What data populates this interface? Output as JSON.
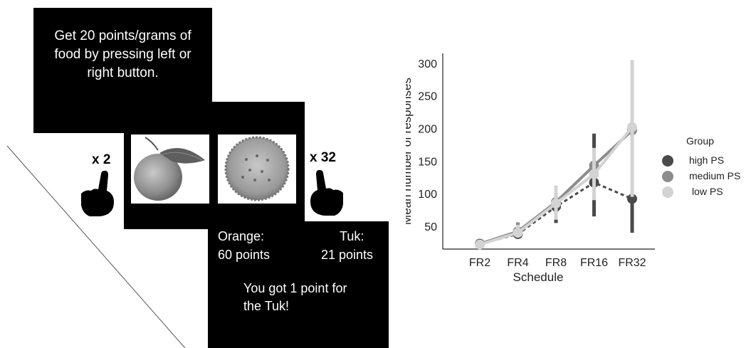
{
  "left_panel": {
    "instruction_text_lines": [
      "Get 20 points/grams of",
      "food by pressing left or",
      "right button."
    ],
    "left_multiplier": "x 2",
    "right_multiplier": "x 32",
    "feedback": {
      "left_name": "Orange:",
      "left_points": "60 points",
      "right_name": "Tuk:",
      "right_points": "21 points",
      "message_lines": [
        "You got 1 point for",
        "the Tuk!"
      ]
    },
    "icons": [
      "hand-pointing-icon",
      "orange-image",
      "tuk-cracker-image"
    ]
  },
  "chart_data": {
    "type": "line",
    "xlabel": "Schedule",
    "ylabel": "Mean number of responses",
    "categories": [
      "FR2",
      "FR4",
      "FR8",
      "FR16",
      "FR32"
    ],
    "yticks": [
      50,
      100,
      150,
      200,
      250,
      300
    ],
    "ylim": [
      15,
      315
    ],
    "legend_title": "Group",
    "legend_position": "right",
    "series": [
      {
        "name": "high PS",
        "color": "#4a4a4a",
        "dash": true,
        "values": [
          23,
          38,
          80,
          117,
          92
        ],
        "err_low": [
          20,
          34,
          55,
          65,
          40
        ],
        "err_high": [
          26,
          44,
          112,
          192,
          105
        ]
      },
      {
        "name": "medium PS",
        "color": "#8c8c8c",
        "dash": false,
        "values": [
          23,
          42,
          87,
          143,
          197
        ],
        "err_low": [
          20,
          37,
          65,
          100,
          160
        ],
        "err_high": [
          26,
          56,
          110,
          190,
          250
        ]
      },
      {
        "name": "low PS",
        "color": "#d3d3d3",
        "dash": false,
        "values": [
          22,
          40,
          85,
          130,
          202
        ],
        "err_low": [
          19,
          34,
          60,
          90,
          95
        ],
        "err_high": [
          25,
          52,
          112,
          170,
          305
        ]
      }
    ]
  }
}
